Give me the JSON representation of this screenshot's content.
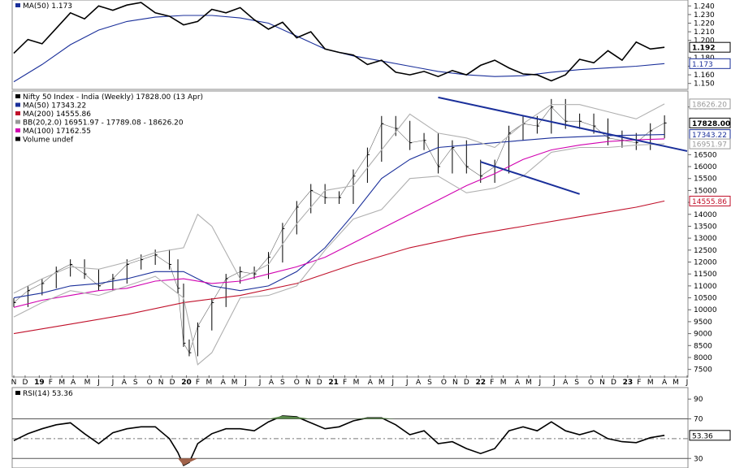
{
  "chart_data": [
    {
      "type": "line",
      "panel": "relative-strength",
      "legend": [
        {
          "label": "MA(50) 1.173",
          "color": "#1a2f9a"
        }
      ],
      "ylim": [
        1.145,
        1.245
      ],
      "y_ticks": [
        "1.240",
        "1.230",
        "1.220",
        "1.210",
        "1.200",
        "1.180",
        "1.170",
        "1.160",
        "1.150"
      ],
      "price_tags": [
        {
          "text": "1.192",
          "value": 1.192,
          "color": "#000000",
          "bold": true
        },
        {
          "text": "1.173",
          "value": 1.173,
          "color": "#1a2f9a",
          "bold": false
        }
      ],
      "series": [
        {
          "name": "MA(50)",
          "color": "#1a2f9a",
          "x": [
            0,
            10,
            20,
            30,
            40,
            50,
            60,
            70,
            80,
            90,
            100,
            110,
            120,
            130,
            140,
            150,
            160,
            170,
            180,
            190,
            200,
            210,
            220,
            230
          ],
          "y": [
            1.152,
            1.172,
            1.195,
            1.212,
            1.222,
            1.227,
            1.229,
            1.229,
            1.226,
            1.22,
            1.205,
            1.19,
            1.182,
            1.176,
            1.17,
            1.164,
            1.16,
            1.158,
            1.159,
            1.163,
            1.166,
            1.168,
            1.17,
            1.173
          ]
        },
        {
          "name": "ratio",
          "color": "#000000",
          "x": [
            0,
            5,
            10,
            15,
            20,
            25,
            30,
            35,
            40,
            45,
            50,
            55,
            60,
            65,
            70,
            75,
            80,
            85,
            90,
            95,
            100,
            105,
            110,
            115,
            120,
            125,
            130,
            135,
            140,
            145,
            150,
            155,
            160,
            165,
            170,
            175,
            180,
            185,
            190,
            195,
            200,
            205,
            210,
            215,
            220,
            225,
            230
          ],
          "y": [
            1.185,
            1.201,
            1.196,
            1.214,
            1.232,
            1.225,
            1.24,
            1.235,
            1.241,
            1.244,
            1.232,
            1.228,
            1.218,
            1.222,
            1.236,
            1.232,
            1.238,
            1.224,
            1.213,
            1.221,
            1.203,
            1.21,
            1.19,
            1.186,
            1.183,
            1.172,
            1.177,
            1.163,
            1.16,
            1.164,
            1.158,
            1.165,
            1.16,
            1.171,
            1.177,
            1.168,
            1.161,
            1.16,
            1.153,
            1.16,
            1.178,
            1.174,
            1.188,
            1.177,
            1.198,
            1.19,
            1.192
          ]
        }
      ]
    },
    {
      "type": "ohlc",
      "panel": "price",
      "legend": [
        {
          "label": "Nifty 50 Index - India (Weekly) 17828.00 (13 Apr)",
          "color": "#000000"
        },
        {
          "label": "MA(50) 17343.22",
          "color": "#1a2f9a"
        },
        {
          "label": "MA(200) 14555.86",
          "color": "#c0102a"
        },
        {
          "label": "BB(20,2.0) 16951.97 - 17789.08 - 18626.20",
          "color": "#999999"
        },
        {
          "label": "MA(100) 17162.55",
          "color": "#d100b0"
        },
        {
          "label": "Volume undef",
          "color": "#000000"
        }
      ],
      "ylim": [
        7250,
        19100
      ],
      "y_ticks": [
        7500,
        8000,
        8500,
        9000,
        9500,
        10000,
        10500,
        11000,
        11500,
        12000,
        12500,
        13000,
        13500,
        14000,
        14500,
        15000,
        15500,
        16000,
        16500,
        18500
      ],
      "price_tags": [
        {
          "text": "18626.20",
          "value": 18626.2,
          "color": "#999999",
          "bold": false
        },
        {
          "text": "17828.00",
          "value": 17828,
          "color": "#000000",
          "bold": true
        },
        {
          "text": "17343.22",
          "value": 17343.22,
          "color": "#1a2f9a",
          "bold": false
        },
        {
          "text": "16951.97",
          "value": 16951.97,
          "color": "#999999",
          "bold": false
        },
        {
          "text": "14555.86",
          "value": 14555.86,
          "color": "#c0102a",
          "bold": false
        }
      ],
      "series": [
        {
          "name": "close",
          "color": "#000000",
          "x": [
            0,
            5,
            10,
            15,
            20,
            25,
            30,
            35,
            40,
            45,
            50,
            55,
            58,
            60,
            62,
            65,
            70,
            75,
            80,
            85,
            90,
            95,
            100,
            105,
            110,
            115,
            120,
            125,
            130,
            135,
            140,
            145,
            150,
            155,
            160,
            165,
            170,
            175,
            180,
            185,
            190,
            195,
            200,
            205,
            210,
            215,
            220,
            225,
            230
          ],
          "y": [
            10300,
            10800,
            11100,
            11600,
            11900,
            11500,
            11000,
            11300,
            11900,
            12100,
            12300,
            11900,
            10900,
            8600,
            8200,
            9300,
            10300,
            11300,
            11600,
            11500,
            12200,
            13400,
            14300,
            15000,
            14700,
            14700,
            15600,
            16500,
            17800,
            17600,
            17000,
            17100,
            16000,
            16800,
            16000,
            15600,
            16000,
            17400,
            17800,
            17700,
            18500,
            17900,
            17900,
            17700,
            17200,
            17100,
            17000,
            17500,
            17828
          ]
        },
        {
          "name": "MA(50)",
          "color": "#1a2f9a",
          "x": [
            0,
            10,
            20,
            30,
            40,
            50,
            60,
            70,
            80,
            90,
            100,
            110,
            120,
            130,
            140,
            150,
            160,
            170,
            180,
            190,
            200,
            210,
            220,
            230
          ],
          "y": [
            10500,
            10700,
            11000,
            11100,
            11300,
            11600,
            11600,
            11000,
            10800,
            11000,
            11600,
            12600,
            14000,
            15500,
            16300,
            16800,
            16900,
            17000,
            17100,
            17200,
            17250,
            17300,
            17320,
            17343
          ]
        },
        {
          "name": "MA(100)",
          "color": "#d100b0",
          "x": [
            0,
            10,
            20,
            30,
            40,
            50,
            60,
            70,
            80,
            90,
            100,
            110,
            120,
            130,
            140,
            150,
            160,
            170,
            180,
            190,
            200,
            210,
            220,
            230
          ],
          "y": [
            10100,
            10400,
            10600,
            10800,
            10900,
            11200,
            11300,
            11100,
            11200,
            11500,
            11800,
            12200,
            12800,
            13400,
            14000,
            14600,
            15200,
            15700,
            16300,
            16700,
            16900,
            17050,
            17120,
            17162
          ]
        },
        {
          "name": "MA(200)",
          "color": "#c0102a",
          "x": [
            0,
            20,
            40,
            60,
            80,
            100,
            120,
            140,
            160,
            180,
            200,
            220,
            230
          ],
          "y": [
            9000,
            9400,
            9800,
            10300,
            10600,
            11100,
            11900,
            12600,
            13100,
            13500,
            13900,
            14300,
            14556
          ]
        },
        {
          "name": "BB upper",
          "color": "#b0b0b0",
          "x": [
            0,
            10,
            20,
            30,
            40,
            50,
            60,
            65,
            70,
            80,
            90,
            100,
            110,
            120,
            130,
            140,
            150,
            160,
            170,
            180,
            190,
            200,
            210,
            220,
            230
          ],
          "y": [
            10700,
            11300,
            11800,
            11700,
            12000,
            12400,
            12600,
            14000,
            13500,
            11300,
            11900,
            13600,
            15000,
            15200,
            16700,
            18200,
            17400,
            17200,
            16800,
            17800,
            18600,
            18600,
            18300,
            18000,
            18626
          ]
        },
        {
          "name": "BB lower",
          "color": "#b0b0b0",
          "x": [
            0,
            10,
            20,
            30,
            40,
            50,
            60,
            65,
            70,
            80,
            90,
            100,
            110,
            120,
            130,
            140,
            150,
            160,
            170,
            180,
            190,
            200,
            210,
            220,
            230
          ],
          "y": [
            9700,
            10300,
            10800,
            10600,
            11000,
            11400,
            10500,
            7700,
            8200,
            10500,
            10600,
            11000,
            12500,
            13800,
            14200,
            15500,
            15600,
            14900,
            15100,
            15600,
            16600,
            16800,
            16800,
            16900,
            16952
          ]
        }
      ]
    },
    {
      "type": "line",
      "panel": "rsi",
      "legend": [
        {
          "label": "RSI(14) 53.36",
          "color": "#000000"
        }
      ],
      "ylim": [
        22,
        100
      ],
      "y_ticks": [
        90,
        70,
        30
      ],
      "price_tags": [
        {
          "text": "53.36",
          "value": 53.36,
          "color": "#000000",
          "bold": false
        }
      ],
      "series": [
        {
          "name": "RSI(14)",
          "color": "#000000",
          "x": [
            0,
            5,
            10,
            15,
            20,
            25,
            30,
            35,
            40,
            45,
            50,
            55,
            58,
            60,
            62,
            65,
            70,
            75,
            80,
            85,
            90,
            95,
            100,
            105,
            110,
            115,
            120,
            125,
            130,
            135,
            140,
            145,
            150,
            155,
            160,
            165,
            170,
            175,
            180,
            185,
            190,
            195,
            200,
            205,
            210,
            215,
            220,
            225,
            230
          ],
          "y": [
            48,
            55,
            60,
            64,
            66,
            55,
            45,
            56,
            60,
            62,
            62,
            50,
            36,
            23,
            26,
            45,
            55,
            60,
            60,
            58,
            67,
            73,
            72,
            66,
            60,
            62,
            68,
            71,
            71,
            64,
            54,
            58,
            45,
            47,
            40,
            35,
            40,
            58,
            62,
            58,
            67,
            58,
            54,
            58,
            50,
            47,
            46,
            51,
            53.36
          ]
        }
      ]
    }
  ],
  "x_axis": [
    {
      "label": "N",
      "x": 0,
      "bold": false
    },
    {
      "label": "D",
      "x": 4,
      "bold": false
    },
    {
      "label": "19",
      "x": 9,
      "bold": true
    },
    {
      "label": "F",
      "x": 13,
      "bold": false
    },
    {
      "label": "M",
      "x": 17,
      "bold": false
    },
    {
      "label": "A",
      "x": 21,
      "bold": false
    },
    {
      "label": "M",
      "x": 26,
      "bold": false
    },
    {
      "label": "J",
      "x": 30,
      "bold": false
    },
    {
      "label": "J",
      "x": 35,
      "bold": false
    },
    {
      "label": "A",
      "x": 39,
      "bold": false
    },
    {
      "label": "S",
      "x": 43,
      "bold": false
    },
    {
      "label": "O",
      "x": 48,
      "bold": false
    },
    {
      "label": "N",
      "x": 52,
      "bold": false
    },
    {
      "label": "D",
      "x": 56,
      "bold": false
    },
    {
      "label": "20",
      "x": 61,
      "bold": true
    },
    {
      "label": "F",
      "x": 65,
      "bold": false
    },
    {
      "label": "M",
      "x": 69,
      "bold": false
    },
    {
      "label": "A",
      "x": 74,
      "bold": false
    },
    {
      "label": "M",
      "x": 78,
      "bold": false
    },
    {
      "label": "J",
      "x": 82,
      "bold": false
    },
    {
      "label": "J",
      "x": 87,
      "bold": false
    },
    {
      "label": "A",
      "x": 91,
      "bold": false
    },
    {
      "label": "S",
      "x": 95,
      "bold": false
    },
    {
      "label": "O",
      "x": 100,
      "bold": false
    },
    {
      "label": "N",
      "x": 104,
      "bold": false
    },
    {
      "label": "D",
      "x": 108,
      "bold": false
    },
    {
      "label": "21",
      "x": 113,
      "bold": true
    },
    {
      "label": "F",
      "x": 117,
      "bold": false
    },
    {
      "label": "M",
      "x": 121,
      "bold": false
    },
    {
      "label": "A",
      "x": 126,
      "bold": false
    },
    {
      "label": "M",
      "x": 130,
      "bold": false
    },
    {
      "label": "J",
      "x": 134,
      "bold": false
    },
    {
      "label": "J",
      "x": 139,
      "bold": false
    },
    {
      "label": "A",
      "x": 143,
      "bold": false
    },
    {
      "label": "S",
      "x": 147,
      "bold": false
    },
    {
      "label": "O",
      "x": 152,
      "bold": false
    },
    {
      "label": "N",
      "x": 156,
      "bold": false
    },
    {
      "label": "D",
      "x": 160,
      "bold": false
    },
    {
      "label": "22",
      "x": 165,
      "bold": true
    },
    {
      "label": "F",
      "x": 169,
      "bold": false
    },
    {
      "label": "M",
      "x": 173,
      "bold": false
    },
    {
      "label": "A",
      "x": 178,
      "bold": false
    },
    {
      "label": "M",
      "x": 182,
      "bold": false
    },
    {
      "label": "J",
      "x": 186,
      "bold": false
    },
    {
      "label": "J",
      "x": 191,
      "bold": false
    },
    {
      "label": "A",
      "x": 195,
      "bold": false
    },
    {
      "label": "S",
      "x": 199,
      "bold": false
    },
    {
      "label": "O",
      "x": 204,
      "bold": false
    },
    {
      "label": "N",
      "x": 208,
      "bold": false
    },
    {
      "label": "D",
      "x": 212,
      "bold": false
    },
    {
      "label": "23",
      "x": 217,
      "bold": true
    },
    {
      "label": "F",
      "x": 221,
      "bold": false
    },
    {
      "label": "M",
      "x": 225,
      "bold": false
    },
    {
      "label": "A",
      "x": 230,
      "bold": false
    },
    {
      "label": "M",
      "x": 234,
      "bold": false
    },
    {
      "label": "J",
      "x": 238,
      "bold": false
    }
  ],
  "trendlines": [
    {
      "name": "upper-trendline",
      "color": "#1a2f9a",
      "x1": 150,
      "y1": 18900,
      "x2": 238,
      "y2": 16650
    },
    {
      "name": "lower-trendline",
      "color": "#1a2f9a",
      "x1": 165,
      "y1": 16200,
      "x2": 200,
      "y2": 14850
    }
  ]
}
